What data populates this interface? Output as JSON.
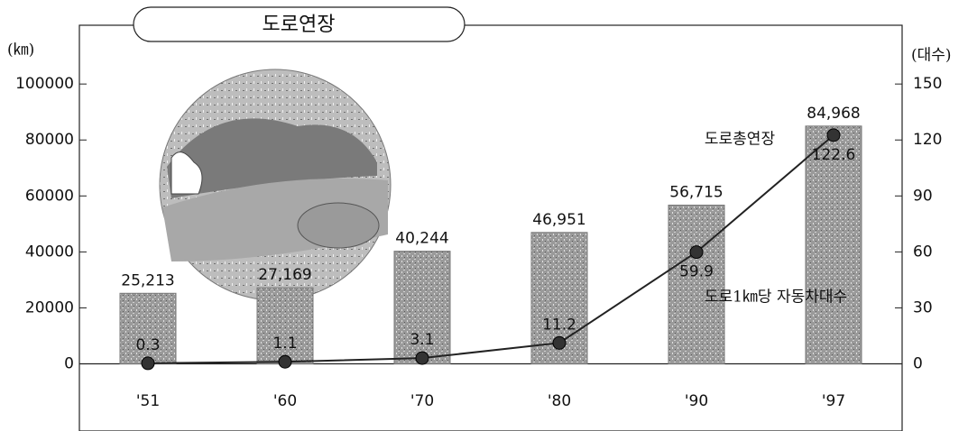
{
  "chart_data": {
    "type": "bar",
    "title": "도로연장",
    "y_label": "(㎞)",
    "y2_label": "(대수)",
    "categories": [
      "'51",
      "'60",
      "'70",
      "'80",
      "'90",
      "'97"
    ],
    "series": [
      {
        "name": "도로총연장",
        "type": "bar",
        "color": "#9a9a9a",
        "values": [
          25213,
          27169,
          40244,
          46951,
          56715,
          84968
        ],
        "value_labels": [
          "25,213",
          "27,169",
          "40,244",
          "46,951",
          "56,715",
          "84,968"
        ]
      },
      {
        "name": "도로1㎞당 자동차대수",
        "type": "line",
        "axis": "y2",
        "color": "#222222",
        "values": [
          0.3,
          1.1,
          3.1,
          11.2,
          59.9,
          122.6
        ]
      }
    ],
    "ylim": [
      -24000,
      121000
    ],
    "yticks": [
      0,
      20000,
      40000,
      60000,
      80000,
      100000
    ],
    "y2lim": [
      -36,
      181.5
    ],
    "y2ticks": [
      0,
      30,
      60,
      90,
      120,
      150
    ]
  }
}
